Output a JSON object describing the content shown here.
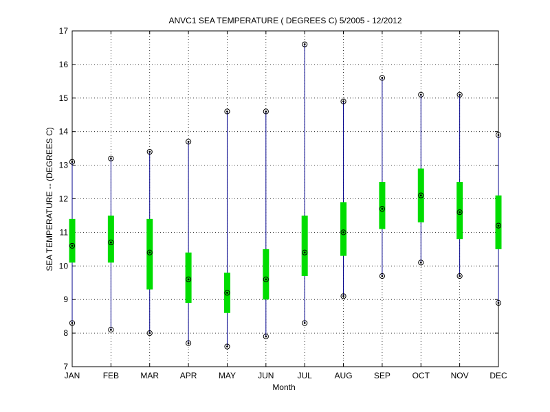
{
  "chart_data": {
    "type": "box",
    "title": "ANVC1  SEA TEMPERATURE ( DEGREES C) 5/2005 - 12/2012",
    "xlabel": "Month",
    "ylabel": "SEA TEMPERATURE -- (DEGREES C)",
    "ylim": [
      7,
      17
    ],
    "yticks": [
      7,
      8,
      9,
      10,
      11,
      12,
      13,
      14,
      15,
      16,
      17
    ],
    "grid": true,
    "categories": [
      "JAN",
      "FEB",
      "MAR",
      "APR",
      "MAY",
      "JUN",
      "JUL",
      "AUG",
      "SEP",
      "OCT",
      "NOV",
      "DEC"
    ],
    "min": [
      8.3,
      8.1,
      8.0,
      7.7,
      7.6,
      7.9,
      8.3,
      9.1,
      9.7,
      10.1,
      9.7,
      8.9
    ],
    "q1": [
      10.1,
      10.1,
      9.3,
      8.9,
      8.6,
      9.0,
      9.7,
      10.3,
      11.1,
      11.3,
      10.8,
      10.5
    ],
    "median": [
      10.6,
      10.7,
      10.4,
      9.6,
      9.2,
      9.6,
      10.4,
      11.0,
      11.7,
      12.1,
      11.6,
      11.2
    ],
    "q3": [
      11.4,
      11.5,
      11.4,
      10.4,
      9.8,
      10.5,
      11.5,
      11.9,
      12.5,
      12.9,
      12.5,
      12.1
    ],
    "max": [
      13.1,
      13.2,
      13.4,
      13.7,
      14.6,
      14.6,
      16.6,
      14.9,
      15.6,
      15.1,
      15.1,
      13.9
    ],
    "colors": {
      "whisker": "#00008b",
      "box": "#00dd00",
      "marker": "#000000"
    }
  }
}
